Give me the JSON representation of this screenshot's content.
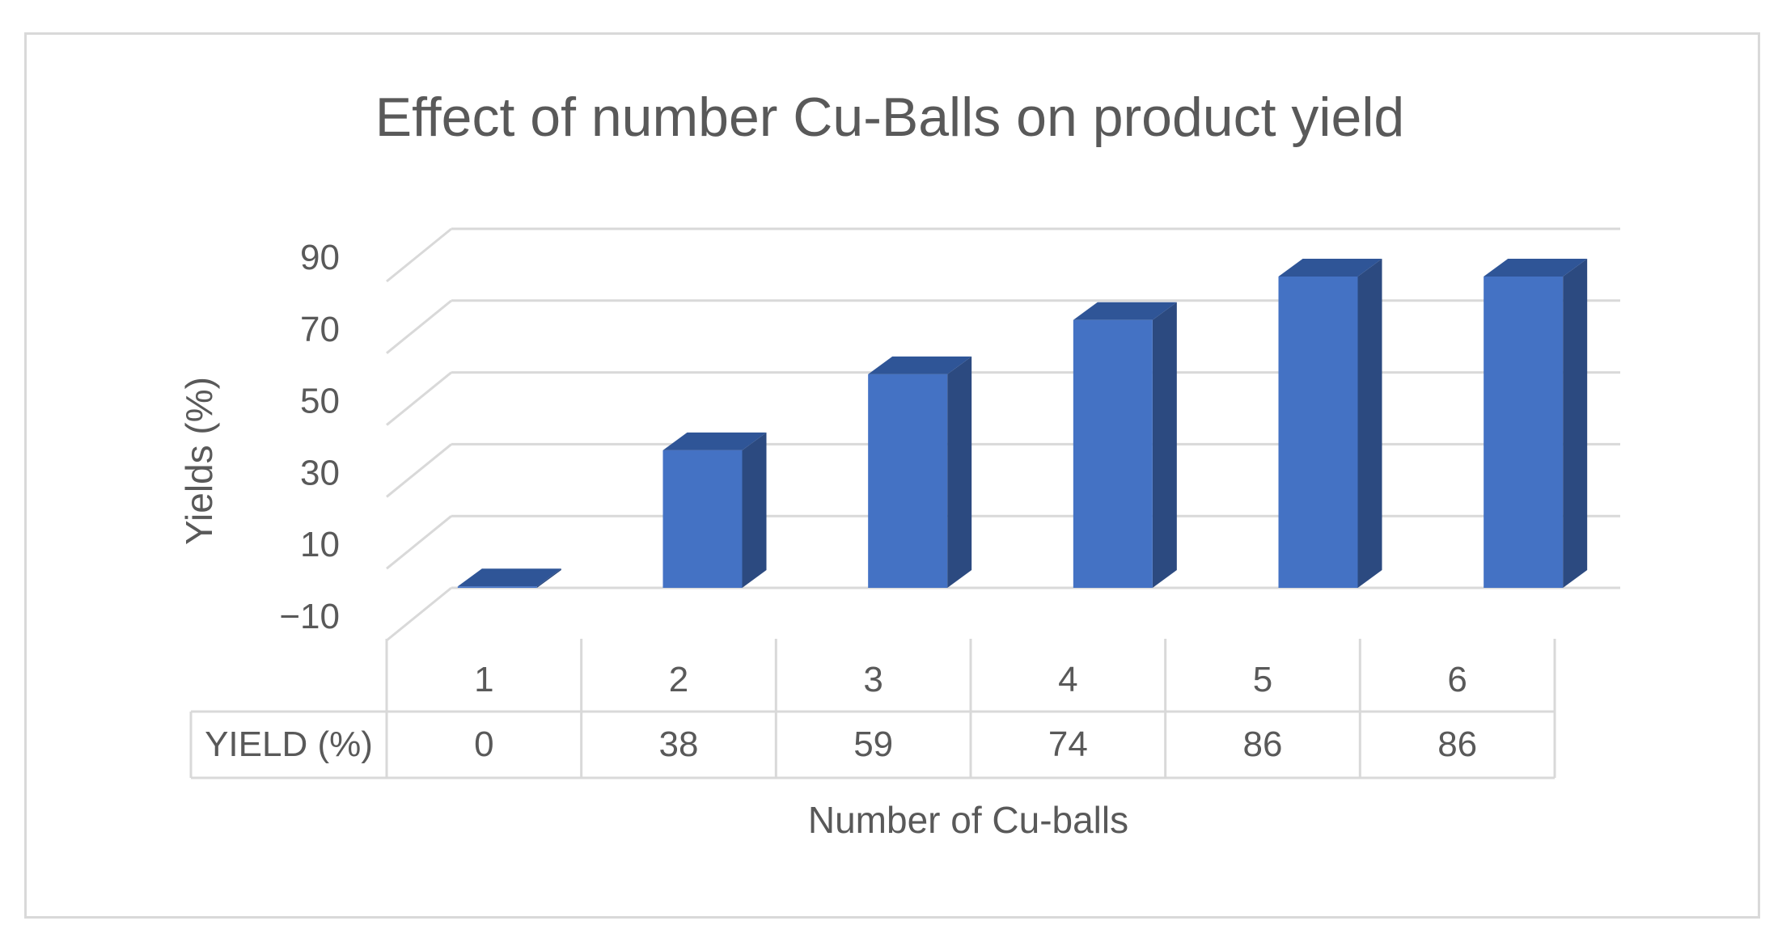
{
  "chart_data": {
    "type": "bar",
    "title": "Effect of number Cu-Balls on product yield",
    "xlabel": "Number of Cu-balls",
    "ylabel": "Yields (%)",
    "categories": [
      "1",
      "2",
      "3",
      "4",
      "5",
      "6"
    ],
    "series": [
      {
        "name": "YIELD (%)",
        "values": [
          0,
          38,
          59,
          74,
          86,
          86
        ]
      }
    ],
    "yticks": [
      "90",
      "70",
      "50",
      "30",
      "10",
      "−10"
    ],
    "ylim": [
      -10,
      90
    ],
    "grid": true,
    "three_d": true,
    "data_table": true,
    "colors": {
      "bar_front": "#4472c4",
      "bar_side": "#2c4a80",
      "bar_top": "#2f5597",
      "grid": "#d9d9d9",
      "text": "#595959"
    }
  }
}
